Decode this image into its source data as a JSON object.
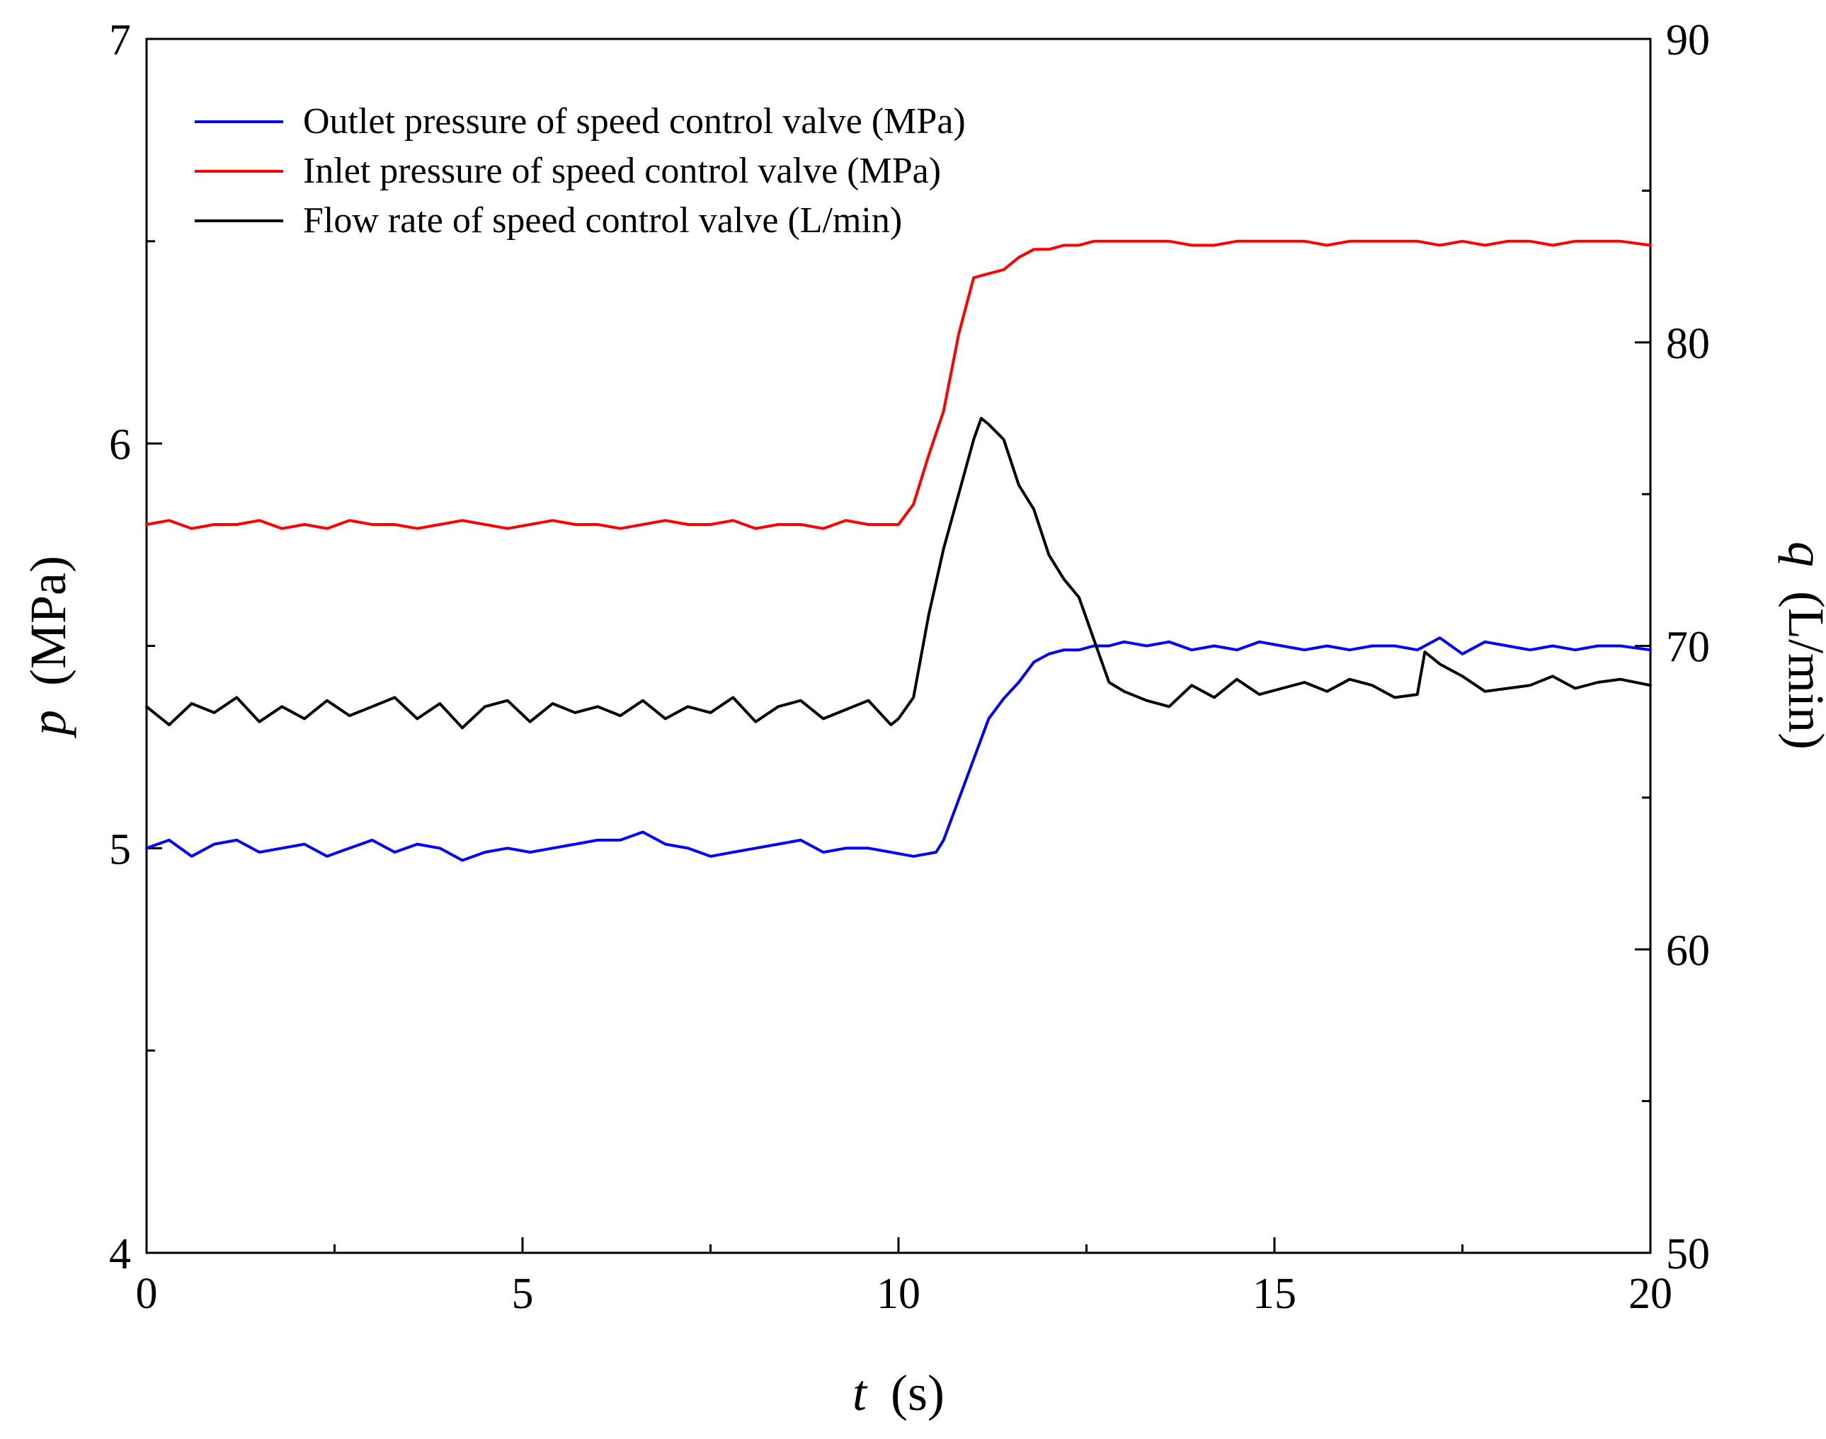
{
  "chart_data": {
    "type": "line",
    "xlabel": {
      "symbol": "t",
      "unit": "(s)"
    },
    "ylabel_left": {
      "symbol": "p",
      "unit": "(MPa)"
    },
    "ylabel_right": {
      "symbol": "q",
      "unit": "(L/min)"
    },
    "xlim": [
      0,
      20
    ],
    "ylim_left": [
      4,
      7
    ],
    "ylim_right": [
      50,
      90
    ],
    "x_ticks": [
      "0",
      "5",
      "10",
      "15",
      "20"
    ],
    "y_left_ticks": [
      "4",
      "5",
      "6",
      "7"
    ],
    "y_right_ticks": [
      "50",
      "60",
      "70",
      "80",
      "90"
    ],
    "grid": false,
    "legend_position": "top-left",
    "series": [
      {
        "name": "Outlet pressure of speed control valve (MPa)",
        "color": "#0000ff",
        "axis": "left",
        "x": [
          0,
          0.3,
          0.6,
          0.9,
          1.2,
          1.5,
          1.8,
          2.1,
          2.4,
          2.7,
          3.0,
          3.3,
          3.6,
          3.9,
          4.2,
          4.5,
          4.8,
          5.1,
          5.4,
          5.7,
          6.0,
          6.3,
          6.6,
          6.9,
          7.2,
          7.5,
          7.8,
          8.1,
          8.4,
          8.7,
          9.0,
          9.3,
          9.6,
          9.9,
          10.2,
          10.5,
          10.6,
          10.8,
          11.0,
          11.2,
          11.4,
          11.6,
          11.8,
          12.0,
          12.2,
          12.4,
          12.6,
          12.8,
          13.0,
          13.3,
          13.6,
          13.9,
          14.2,
          14.5,
          14.8,
          15.1,
          15.4,
          15.7,
          16.0,
          16.3,
          16.6,
          16.9,
          17.2,
          17.5,
          17.8,
          18.1,
          18.4,
          18.7,
          19.0,
          19.3,
          19.6,
          20.0
        ],
        "y": [
          5.0,
          5.02,
          4.98,
          5.01,
          5.02,
          4.99,
          5.0,
          5.01,
          4.98,
          5.0,
          5.02,
          4.99,
          5.01,
          5.0,
          4.97,
          4.99,
          5.0,
          4.99,
          5.0,
          5.01,
          5.02,
          5.02,
          5.04,
          5.01,
          5.0,
          4.98,
          4.99,
          5.0,
          5.01,
          5.02,
          4.99,
          5.0,
          5.0,
          4.99,
          4.98,
          4.99,
          5.02,
          5.12,
          5.22,
          5.32,
          5.37,
          5.41,
          5.46,
          5.48,
          5.49,
          5.49,
          5.5,
          5.5,
          5.51,
          5.5,
          5.51,
          5.49,
          5.5,
          5.49,
          5.51,
          5.5,
          5.49,
          5.5,
          5.49,
          5.5,
          5.5,
          5.49,
          5.52,
          5.48,
          5.51,
          5.5,
          5.49,
          5.5,
          5.49,
          5.5,
          5.5,
          5.49
        ]
      },
      {
        "name": "Inlet pressure of speed control valve (MPa)",
        "color": "#ff0000",
        "axis": "left",
        "x": [
          0,
          0.3,
          0.6,
          0.9,
          1.2,
          1.5,
          1.8,
          2.1,
          2.4,
          2.7,
          3.0,
          3.3,
          3.6,
          3.9,
          4.2,
          4.5,
          4.8,
          5.1,
          5.4,
          5.7,
          6.0,
          6.3,
          6.6,
          6.9,
          7.2,
          7.5,
          7.8,
          8.1,
          8.4,
          8.7,
          9.0,
          9.3,
          9.6,
          9.9,
          10.0,
          10.2,
          10.4,
          10.6,
          10.8,
          11.0,
          11.2,
          11.4,
          11.6,
          11.8,
          12.0,
          12.2,
          12.4,
          12.6,
          12.8,
          13.0,
          13.3,
          13.6,
          13.9,
          14.2,
          14.5,
          14.8,
          15.1,
          15.4,
          15.7,
          16.0,
          16.3,
          16.6,
          16.9,
          17.2,
          17.5,
          17.8,
          18.1,
          18.4,
          18.7,
          19.0,
          19.3,
          19.6,
          20.0
        ],
        "y": [
          5.8,
          5.81,
          5.79,
          5.8,
          5.8,
          5.81,
          5.79,
          5.8,
          5.79,
          5.81,
          5.8,
          5.8,
          5.79,
          5.8,
          5.81,
          5.8,
          5.79,
          5.8,
          5.81,
          5.8,
          5.8,
          5.79,
          5.8,
          5.81,
          5.8,
          5.8,
          5.81,
          5.79,
          5.8,
          5.8,
          5.79,
          5.81,
          5.8,
          5.8,
          5.8,
          5.85,
          5.97,
          6.08,
          6.27,
          6.41,
          6.42,
          6.43,
          6.46,
          6.48,
          6.48,
          6.49,
          6.49,
          6.5,
          6.5,
          6.5,
          6.5,
          6.5,
          6.49,
          6.49,
          6.5,
          6.5,
          6.5,
          6.5,
          6.49,
          6.5,
          6.5,
          6.5,
          6.5,
          6.49,
          6.5,
          6.49,
          6.5,
          6.5,
          6.49,
          6.5,
          6.5,
          6.5,
          6.49
        ]
      },
      {
        "name": "Flow rate of speed control valve (L/min)",
        "color": "#000000",
        "axis": "right",
        "x": [
          0,
          0.3,
          0.6,
          0.9,
          1.2,
          1.5,
          1.8,
          2.1,
          2.4,
          2.7,
          3.0,
          3.3,
          3.6,
          3.9,
          4.2,
          4.5,
          4.8,
          5.1,
          5.4,
          5.7,
          6.0,
          6.3,
          6.6,
          6.9,
          7.2,
          7.5,
          7.8,
          8.1,
          8.4,
          8.7,
          9.0,
          9.3,
          9.6,
          9.9,
          10.0,
          10.2,
          10.4,
          10.6,
          10.8,
          11.0,
          11.1,
          11.2,
          11.4,
          11.6,
          11.8,
          12.0,
          12.2,
          12.4,
          12.6,
          12.8,
          13.0,
          13.3,
          13.6,
          13.9,
          14.2,
          14.5,
          14.8,
          15.1,
          15.4,
          15.7,
          16.0,
          16.3,
          16.6,
          16.9,
          17.0,
          17.2,
          17.5,
          17.8,
          18.1,
          18.4,
          18.7,
          19.0,
          19.3,
          19.6,
          20.0
        ],
        "y": [
          68.0,
          67.4,
          68.1,
          67.8,
          68.3,
          67.5,
          68.0,
          67.6,
          68.2,
          67.7,
          68.0,
          68.3,
          67.6,
          68.1,
          67.3,
          68.0,
          68.2,
          67.5,
          68.1,
          67.8,
          68.0,
          67.7,
          68.2,
          67.6,
          68.0,
          67.8,
          68.3,
          67.5,
          68.0,
          68.2,
          67.6,
          67.9,
          68.2,
          67.4,
          67.6,
          68.3,
          71.0,
          73.2,
          75.0,
          76.8,
          77.5,
          77.3,
          76.8,
          75.3,
          74.5,
          73.0,
          72.2,
          71.6,
          70.2,
          68.8,
          68.5,
          68.2,
          68.0,
          68.7,
          68.3,
          68.9,
          68.4,
          68.6,
          68.8,
          68.5,
          68.9,
          68.7,
          68.3,
          68.4,
          69.8,
          69.4,
          69.0,
          68.5,
          68.6,
          68.7,
          69.0,
          68.6,
          68.8,
          68.9,
          68.7
        ]
      }
    ]
  }
}
